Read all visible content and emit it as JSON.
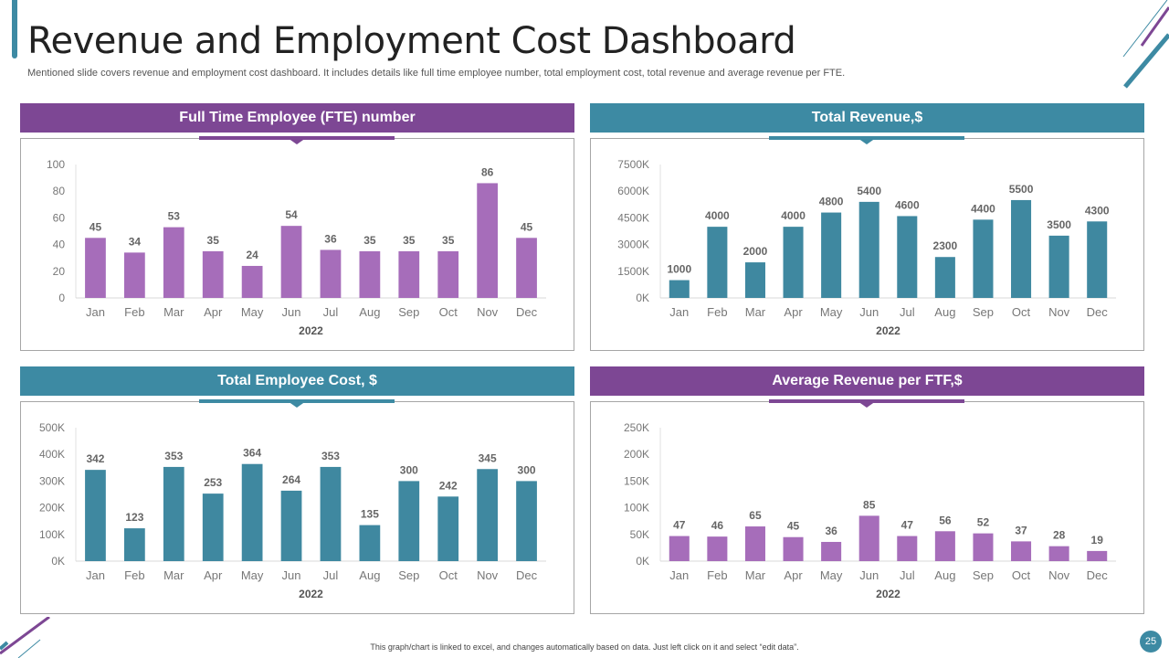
{
  "title": "Revenue and Employment Cost Dashboard",
  "subtitle": "Mentioned slide covers revenue and employment cost dashboard. It includes details like full time employee number, total employment cost, total revenue and average revenue per FTE.",
  "footer": "This graph/chart is linked to excel, and changes automatically based on data. Just left click on it and select “edit data”.",
  "page_number": "25",
  "colors": {
    "purple_header": "#7D4794",
    "teal_header": "#3D8AA3",
    "purple_bar": "#A66DBA",
    "teal_bar": "#3F88A0"
  },
  "chart_data": [
    {
      "type": "bar",
      "title": "Full Time Employee (FTE) number",
      "xlabel": "2022",
      "ylabel": "",
      "categories": [
        "Jan",
        "Feb",
        "Mar",
        "Apr",
        "May",
        "Jun",
        "Jul",
        "Aug",
        "Sep",
        "Oct",
        "Nov",
        "Dec"
      ],
      "values": [
        45,
        34,
        53,
        35,
        24,
        54,
        36,
        35,
        35,
        35,
        86,
        45
      ],
      "data_labels": [
        "45",
        "34",
        "53",
        "35",
        "24",
        "54",
        "36",
        "35",
        "35",
        "35",
        "86",
        "45"
      ],
      "ylim": [
        0,
        100
      ],
      "yticks": [
        "0",
        "20",
        "40",
        "60",
        "80",
        "100"
      ],
      "color": "#A66DBA",
      "header_color": "#7D4794"
    },
    {
      "type": "bar",
      "title": "Total Revenue,$",
      "xlabel": "2022",
      "ylabel": "",
      "categories": [
        "Jan",
        "Feb",
        "Mar",
        "Apr",
        "May",
        "Jun",
        "Jul",
        "Aug",
        "Sep",
        "Oct",
        "Nov",
        "Dec"
      ],
      "values": [
        1000,
        4000,
        2000,
        4000,
        4800,
        5400,
        4600,
        2300,
        4400,
        5500,
        3500,
        4300
      ],
      "data_labels": [
        "1000",
        "4000",
        "2000",
        "4000",
        "4800",
        "5400",
        "4600",
        "2300",
        "4400",
        "5500",
        "3500",
        "4300"
      ],
      "ylim": [
        0,
        7500
      ],
      "yticks": [
        "0K",
        "1500K",
        "3000K",
        "4500K",
        "6000K",
        "7500K"
      ],
      "color": "#3F88A0",
      "header_color": "#3D8AA3"
    },
    {
      "type": "bar",
      "title": "Total Employee Cost, $",
      "xlabel": "2022",
      "ylabel": "",
      "categories": [
        "Jan",
        "Feb",
        "Mar",
        "Apr",
        "May",
        "Jun",
        "Jul",
        "Aug",
        "Sep",
        "Oct",
        "Nov",
        "Dec"
      ],
      "values": [
        342,
        123,
        353,
        253,
        364,
        264,
        353,
        135,
        300,
        242,
        345,
        300
      ],
      "data_labels": [
        "342",
        "123",
        "353",
        "253",
        "364",
        "264",
        "353",
        "135",
        "300",
        "242",
        "345",
        "300"
      ],
      "ylim": [
        0,
        500
      ],
      "yticks": [
        "0K",
        "100K",
        "200K",
        "300K",
        "400K",
        "500K"
      ],
      "color": "#3F88A0",
      "header_color": "#3D8AA3"
    },
    {
      "type": "bar",
      "title": "Average Revenue per FTF,$",
      "xlabel": "2022",
      "ylabel": "",
      "categories": [
        "Jan",
        "Feb",
        "Mar",
        "Apr",
        "May",
        "Jun",
        "Jul",
        "Aug",
        "Sep",
        "Oct",
        "Nov",
        "Dec"
      ],
      "values": [
        47,
        46,
        65,
        45,
        36,
        85,
        47,
        56,
        52,
        37,
        28,
        19
      ],
      "data_labels": [
        "47",
        "46",
        "65",
        "45",
        "36",
        "85",
        "47",
        "56",
        "52",
        "37",
        "28",
        "19"
      ],
      "ylim": [
        0,
        250
      ],
      "yticks": [
        "0K",
        "50K",
        "100K",
        "150K",
        "200K",
        "250K"
      ],
      "color": "#A66DBA",
      "header_color": "#7D4794"
    }
  ]
}
